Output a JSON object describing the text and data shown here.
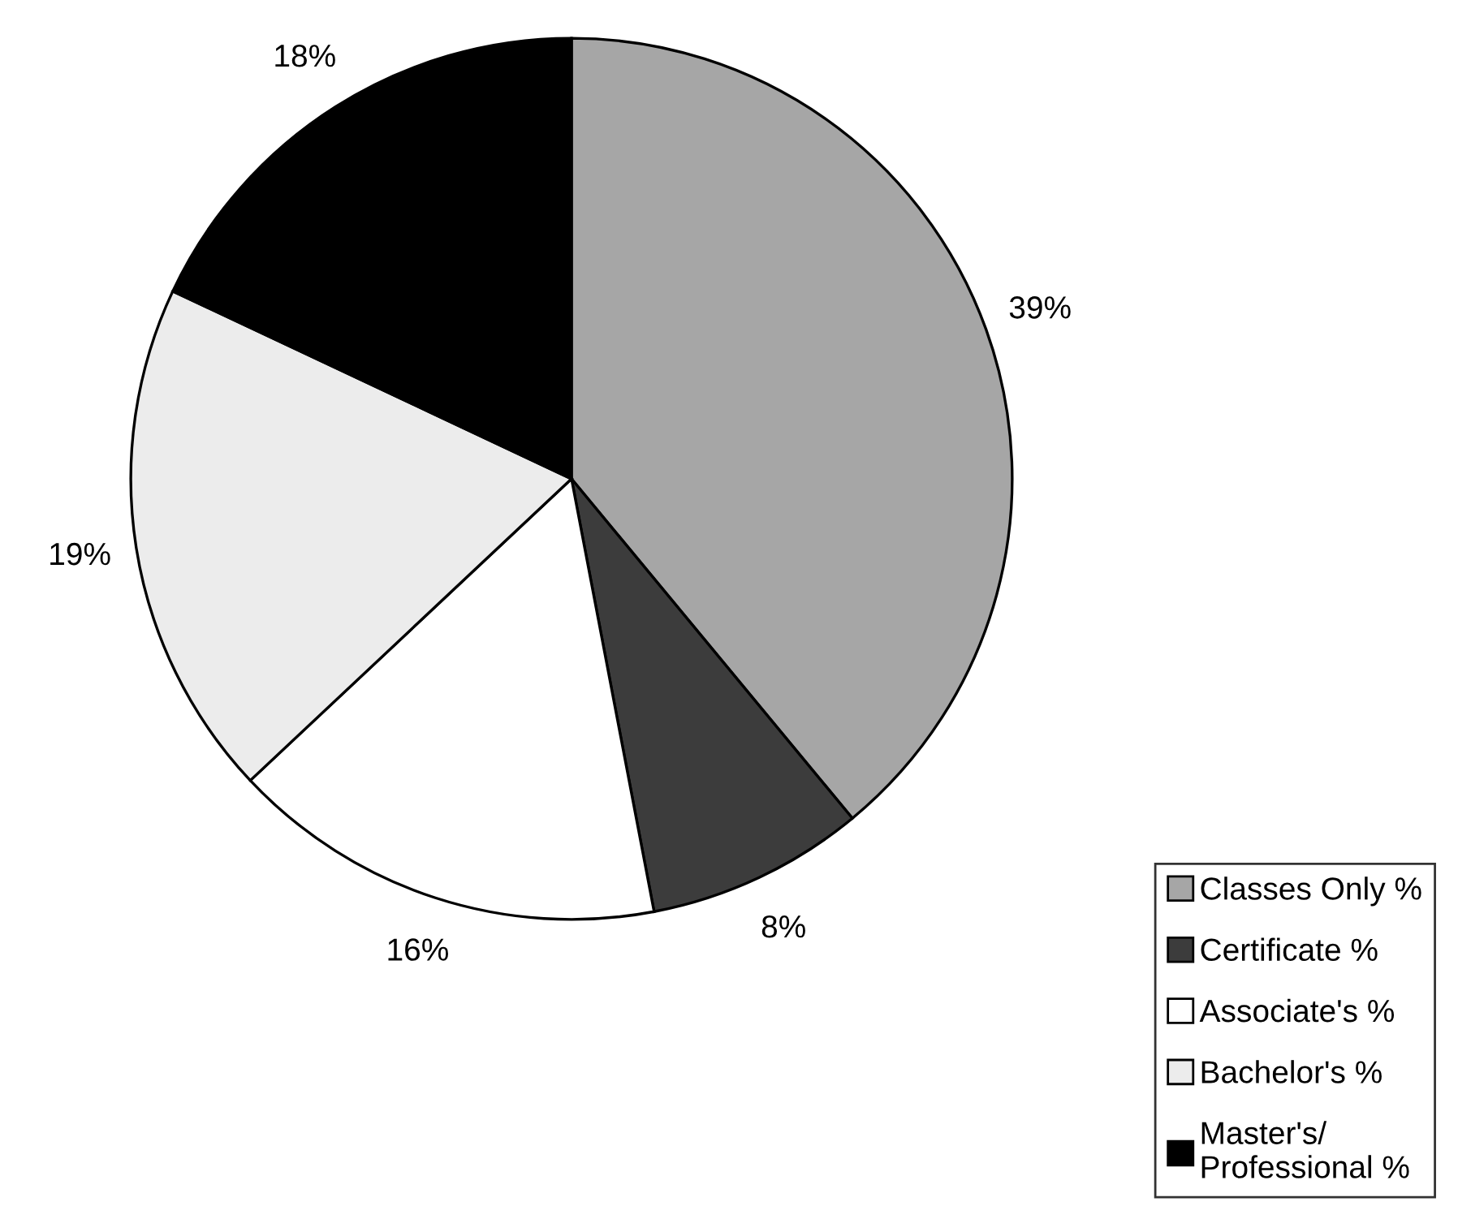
{
  "chart_data": {
    "type": "pie",
    "categories": [
      "Classes Only %",
      "Certificate %",
      "Associate's %",
      "Bachelor's %",
      "Master's/\nProfessional %"
    ],
    "values": [
      39,
      8,
      16,
      19,
      18
    ],
    "colors": [
      "#a6a6a6",
      "#3c3c3c",
      "#ffffff",
      "#ececec",
      "#000000"
    ],
    "value_labels": [
      "39%",
      "8%",
      "16%",
      "19%",
      "18%"
    ],
    "legend": "bottom right"
  }
}
